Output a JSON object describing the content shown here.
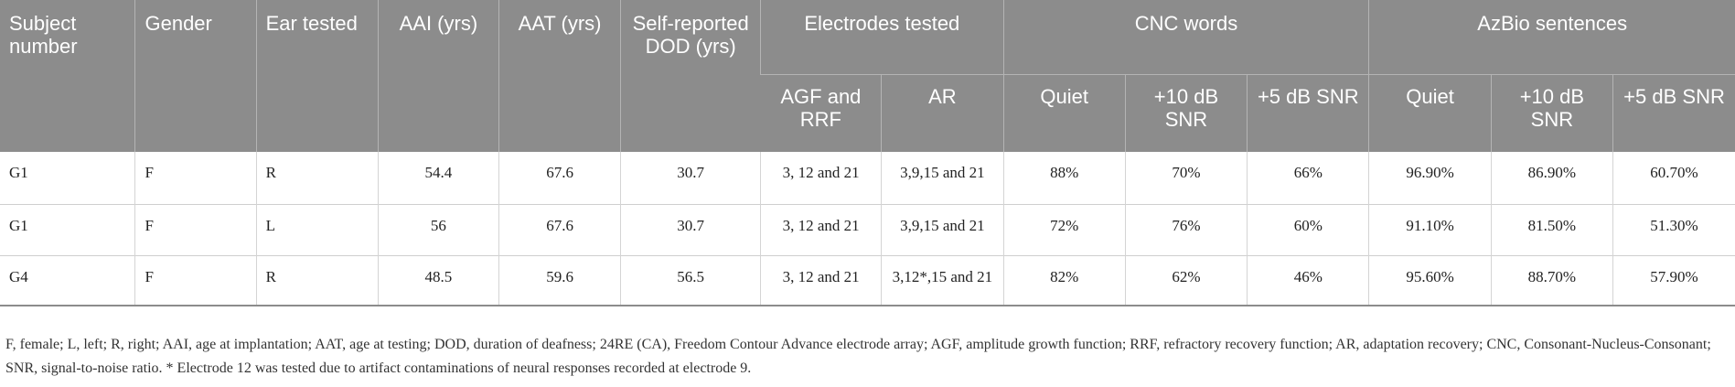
{
  "header": {
    "subject_number": "Subject number",
    "gender": "Gender",
    "ear_tested": "Ear tested",
    "aai": "AAI (yrs)",
    "aat": "AAT (yrs)",
    "dod": "Self-reported DOD (yrs)",
    "electrodes_tested": "Electrodes tested",
    "cnc_words": "CNC words",
    "azbio": "AzBio sentences",
    "electrodes_sub": [
      "AGF and RRF",
      "AR"
    ],
    "cnc_sub": [
      "Quiet",
      "+10 dB SNR",
      "+5 dB SNR"
    ],
    "azbio_sub": [
      "Quiet",
      "+10 dB SNR",
      "+5 dB SNR"
    ]
  },
  "rows": [
    {
      "subject": "G1",
      "gender": "F",
      "ear": "R",
      "aai": "54.4",
      "aat": "67.6",
      "dod": "30.7",
      "agf_rrf": "3, 12 and 21",
      "ar": "3,9,15 and 21",
      "cnc_quiet": "88%",
      "cnc_10": "70%",
      "cnc_5": "66%",
      "az_quiet": "96.90%",
      "az_10": "86.90%",
      "az_5": "60.70%"
    },
    {
      "subject": "G1",
      "gender": "F",
      "ear": "L",
      "aai": "56",
      "aat": "67.6",
      "dod": "30.7",
      "agf_rrf": "3, 12 and 21",
      "ar": "3,9,15 and 21",
      "cnc_quiet": "72%",
      "cnc_10": "76%",
      "cnc_5": "60%",
      "az_quiet": "91.10%",
      "az_10": "81.50%",
      "az_5": "51.30%"
    },
    {
      "subject": "G4",
      "gender": "F",
      "ear": "R",
      "aai": "48.5",
      "aat": "59.6",
      "dod": "56.5",
      "agf_rrf": "3, 12 and 21",
      "ar": "3,12*,15 and 21",
      "cnc_quiet": "82%",
      "cnc_10": "62%",
      "cnc_5": "46%",
      "az_quiet": "95.60%",
      "az_10": "88.70%",
      "az_5": "57.90%"
    }
  ],
  "footnote": "F, female; L, left; R, right; AAI, age at implantation; AAT, age at testing; DOD, duration of deafness; 24RE (CA), Freedom Contour Advance electrode array; AGF, amplitude growth function; RRF, refractory recovery function; AR, adaptation recovery; CNC, Consonant-Nucleus-Consonant; SNR, signal-to-noise ratio. * Electrode 12 was tested due to artifact contaminations of neural responses recorded at electrode 9."
}
